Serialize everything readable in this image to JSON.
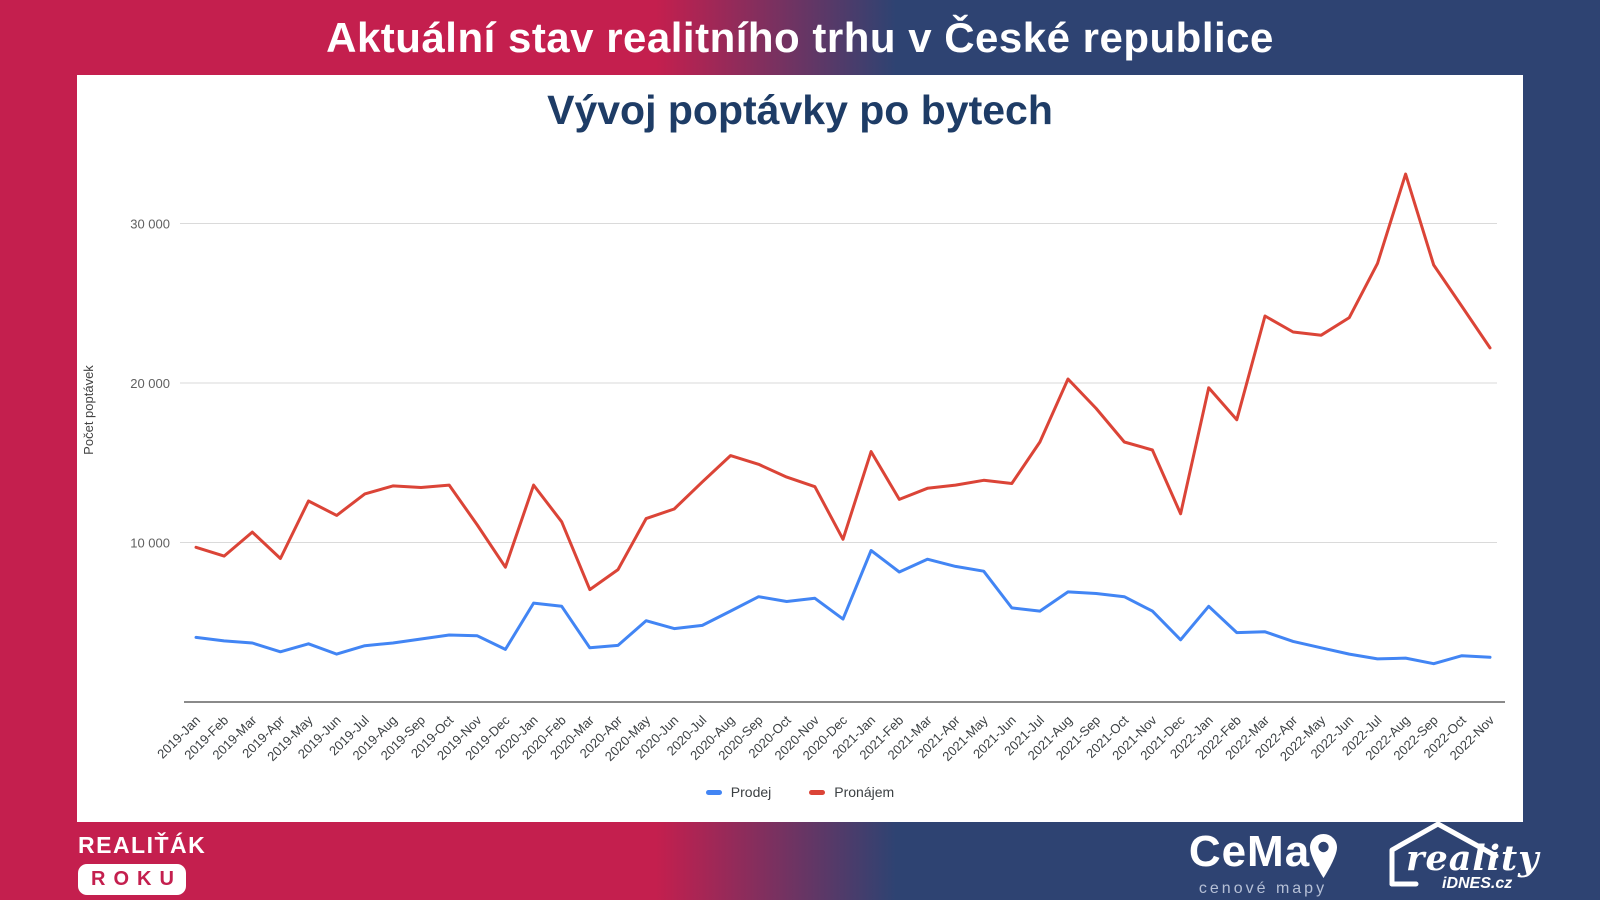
{
  "header": {
    "title": "Aktuální stav realitního trhu v České republice"
  },
  "chart_data": {
    "type": "line",
    "title": "Vývoj poptávky po bytech",
    "xlabel": "",
    "ylabel": "Počet poptávek",
    "ylim": [
      0,
      35000
    ],
    "grid": true,
    "legend_position": "bottom",
    "y_ticks": [
      {
        "value": 10000,
        "label": "10 000"
      },
      {
        "value": 20000,
        "label": "20 000"
      },
      {
        "value": 30000,
        "label": "30 000"
      }
    ],
    "categories": [
      "2019-Jan",
      "2019-Feb",
      "2019-Mar",
      "2019-Apr",
      "2019-May",
      "2019-Jun",
      "2019-Jul",
      "2019-Aug",
      "2019-Sep",
      "2019-Oct",
      "2019-Nov",
      "2019-Dec",
      "2020-Jan",
      "2020-Feb",
      "2020-Mar",
      "2020-Apr",
      "2020-May",
      "2020-Jun",
      "2020-Jul",
      "2020-Aug",
      "2020-Sep",
      "2020-Oct",
      "2020-Nov",
      "2020-Dec",
      "2021-Jan",
      "2021-Feb",
      "2021-Mar",
      "2021-Apr",
      "2021-May",
      "2021-Jun",
      "2021-Jul",
      "2021-Aug",
      "2021-Sep",
      "2021-Oct",
      "2021-Nov",
      "2021-Dec",
      "2022-Jan",
      "2022-Feb",
      "2022-Mar",
      "2022-Apr",
      "2022-May",
      "2022-Jun",
      "2022-Jul",
      "2022-Aug",
      "2022-Sep",
      "2022-Oct",
      "2022-Nov"
    ],
    "series": [
      {
        "name": "Prodej",
        "color": "#4285f4",
        "values": [
          4050,
          3830,
          3700,
          3150,
          3650,
          3000,
          3530,
          3700,
          3950,
          4200,
          4150,
          3300,
          6200,
          6000,
          3400,
          3550,
          5100,
          4600,
          4800,
          5700,
          6600,
          6300,
          6500,
          5200,
          9500,
          8150,
          8950,
          8500,
          8200,
          5900,
          5700,
          6900,
          6800,
          6600,
          5700,
          3900,
          6000,
          4350,
          4400,
          3800,
          3400,
          3000,
          2700,
          2750,
          2400,
          2900,
          2800
        ]
      },
      {
        "name": "Pronájem",
        "color": "#db4437",
        "values": [
          9700,
          9150,
          10650,
          9000,
          12600,
          11700,
          13050,
          13550,
          13450,
          13600,
          11100,
          8450,
          13600,
          11300,
          7050,
          8300,
          11500,
          12100,
          13800,
          15450,
          14900,
          14100,
          13500,
          10200,
          15700,
          12700,
          13400,
          13600,
          13900,
          13700,
          16300,
          20250,
          18400,
          16300,
          15800,
          11800,
          19700,
          17700,
          24200,
          23200,
          23000,
          24100,
          27500,
          33100,
          27400,
          24800,
          22200
        ]
      }
    ]
  },
  "footer": {
    "realitak_line1": "REALIŤÁK",
    "realitak_line2": "ROKU",
    "cemap_name": "CeMap",
    "cemap_subtitle": "cenové mapy",
    "reality_name": "reality",
    "reality_subtitle": "iDNES.cz"
  },
  "colors": {
    "crimson": "#c41f4e",
    "dark_blue": "#2e4372",
    "subtitle_navy": "#1e3c66"
  }
}
